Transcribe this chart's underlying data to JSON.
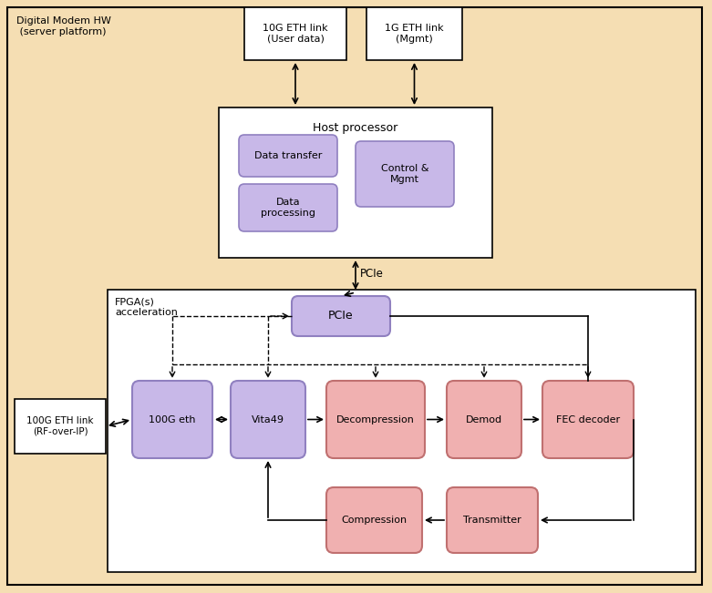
{
  "bg": "#f5deb3",
  "white": "#ffffff",
  "black": "#000000",
  "purple_fill": "#c8b8e8",
  "purple_border": "#9080c0",
  "pink_fill": "#f0b0b0",
  "pink_border": "#c07070",
  "outer_label": "Digital Modem HW\n (server platform)",
  "fpga_label": "FPGA(s)\nacceleration",
  "host_label": "Host processor",
  "pcie_mid_label": "PCIe",
  "eth10g_label": "10G ETH link\n(User data)",
  "eth1g_label": "1G ETH link\n(Mgmt)",
  "eth100g_label": "100G ETH link\n(RF-over-IP)",
  "dt_label": "Data transfer",
  "dp_label": "Data\nprocessing",
  "cm_label": "Control &\nMgmt",
  "pcie_block_label": "PCIe",
  "g100_label": "100G eth",
  "vita_label": "Vita49",
  "decomp_label": "Decompression",
  "demod_label": "Demod",
  "fec_label": "FEC decoder",
  "comp_label": "Compression",
  "trans_label": "Transmitter"
}
